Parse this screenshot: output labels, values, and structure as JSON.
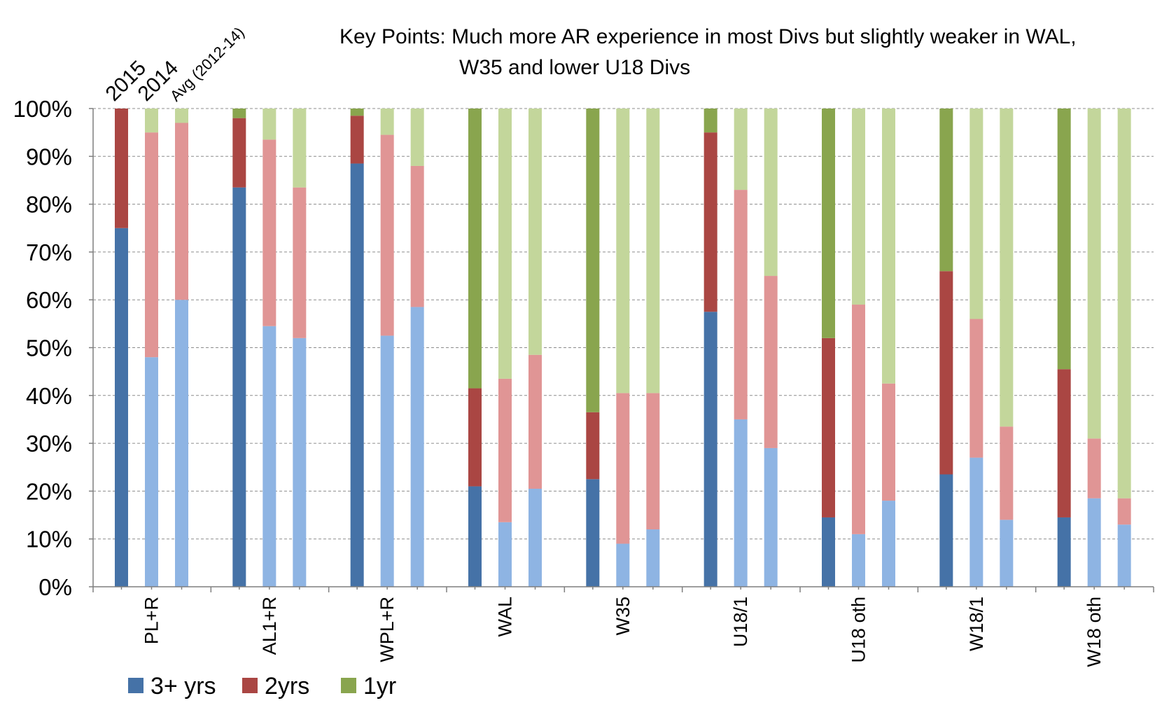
{
  "chart_data": {
    "type": "bar",
    "stacked": true,
    "title": [
      "Key Points: Much more AR experience in most Divs but slightly weaker in WAL,",
      "W35 and lower U18 Divs"
    ],
    "year_labels": [
      "2015",
      "2014",
      "Avg (2012-14)"
    ],
    "categories": [
      "PL+R",
      "AL1+R",
      "WPL+R",
      "WAL",
      "W35",
      "U18/1",
      "U18 oth",
      "W18/1",
      "W18 oth"
    ],
    "ylim": [
      0,
      100
    ],
    "ytick_labels": [
      "0%",
      "10%",
      "20%",
      "30%",
      "40%",
      "50%",
      "60%",
      "70%",
      "80%",
      "90%",
      "100%"
    ],
    "grid": true,
    "legend_position": "bottom-left",
    "series": [
      {
        "name": "3+ yrs",
        "color": "#4572a7",
        "light_color": "#8eb4e3"
      },
      {
        "name": "2yrs",
        "color": "#aa4643",
        "light_color": "#e09595"
      },
      {
        "name": "1yr",
        "color": "#89a54e",
        "light_color": "#c3d69b"
      }
    ],
    "groups": [
      {
        "category": "PL+R",
        "bars": [
          {
            "period": "2015",
            "values": [
              75,
              25,
              0
            ]
          },
          {
            "period": "2014",
            "values": [
              48,
              47,
              5
            ]
          },
          {
            "period": "Avg (2012-14)",
            "values": [
              60,
              37,
              3
            ]
          }
        ]
      },
      {
        "category": "AL1+R",
        "bars": [
          {
            "period": "2015",
            "values": [
              83.5,
              14.5,
              2
            ]
          },
          {
            "period": "2014",
            "values": [
              54.5,
              39,
              6.5
            ]
          },
          {
            "period": "Avg (2012-14)",
            "values": [
              52,
              31.5,
              16.5
            ]
          }
        ]
      },
      {
        "category": "WPL+R",
        "bars": [
          {
            "period": "2015",
            "values": [
              88.5,
              10,
              1.5
            ]
          },
          {
            "period": "2014",
            "values": [
              52.5,
              42,
              5.5
            ]
          },
          {
            "period": "Avg (2012-14)",
            "values": [
              58.5,
              29.5,
              12
            ]
          }
        ]
      },
      {
        "category": "WAL",
        "bars": [
          {
            "period": "2015",
            "values": [
              21,
              20.5,
              58.5
            ]
          },
          {
            "period": "2014",
            "values": [
              13.5,
              30,
              56.5
            ]
          },
          {
            "period": "Avg (2012-14)",
            "values": [
              20.5,
              28,
              51.5
            ]
          }
        ]
      },
      {
        "category": "W35",
        "bars": [
          {
            "period": "2015",
            "values": [
              22.5,
              14,
              63.5
            ]
          },
          {
            "period": "2014",
            "values": [
              9,
              31.5,
              59.5
            ]
          },
          {
            "period": "Avg (2012-14)",
            "values": [
              12,
              28.5,
              59.5
            ]
          }
        ]
      },
      {
        "category": "U18/1",
        "bars": [
          {
            "period": "2015",
            "values": [
              57.5,
              37.5,
              5
            ]
          },
          {
            "period": "2014",
            "values": [
              35,
              48,
              17
            ]
          },
          {
            "period": "Avg (2012-14)",
            "values": [
              29,
              36,
              35
            ]
          }
        ]
      },
      {
        "category": "U18 oth",
        "bars": [
          {
            "period": "2015",
            "values": [
              14.5,
              37.5,
              48
            ]
          },
          {
            "period": "2014",
            "values": [
              11,
              48,
              41
            ]
          },
          {
            "period": "Avg (2012-14)",
            "values": [
              18,
              24.5,
              57.5
            ]
          }
        ]
      },
      {
        "category": "W18/1",
        "bars": [
          {
            "period": "2015",
            "values": [
              23.5,
              42.5,
              34
            ]
          },
          {
            "period": "2014",
            "values": [
              27,
              29,
              44
            ]
          },
          {
            "period": "Avg (2012-14)",
            "values": [
              14,
              19.5,
              66.5
            ]
          }
        ]
      },
      {
        "category": "W18 oth",
        "bars": [
          {
            "period": "2015",
            "values": [
              14.5,
              31,
              54.5
            ]
          },
          {
            "period": "2014",
            "values": [
              18.5,
              12.5,
              69
            ]
          },
          {
            "period": "Avg (2012-14)",
            "values": [
              13,
              5.5,
              81.5
            ]
          }
        ]
      }
    ]
  }
}
